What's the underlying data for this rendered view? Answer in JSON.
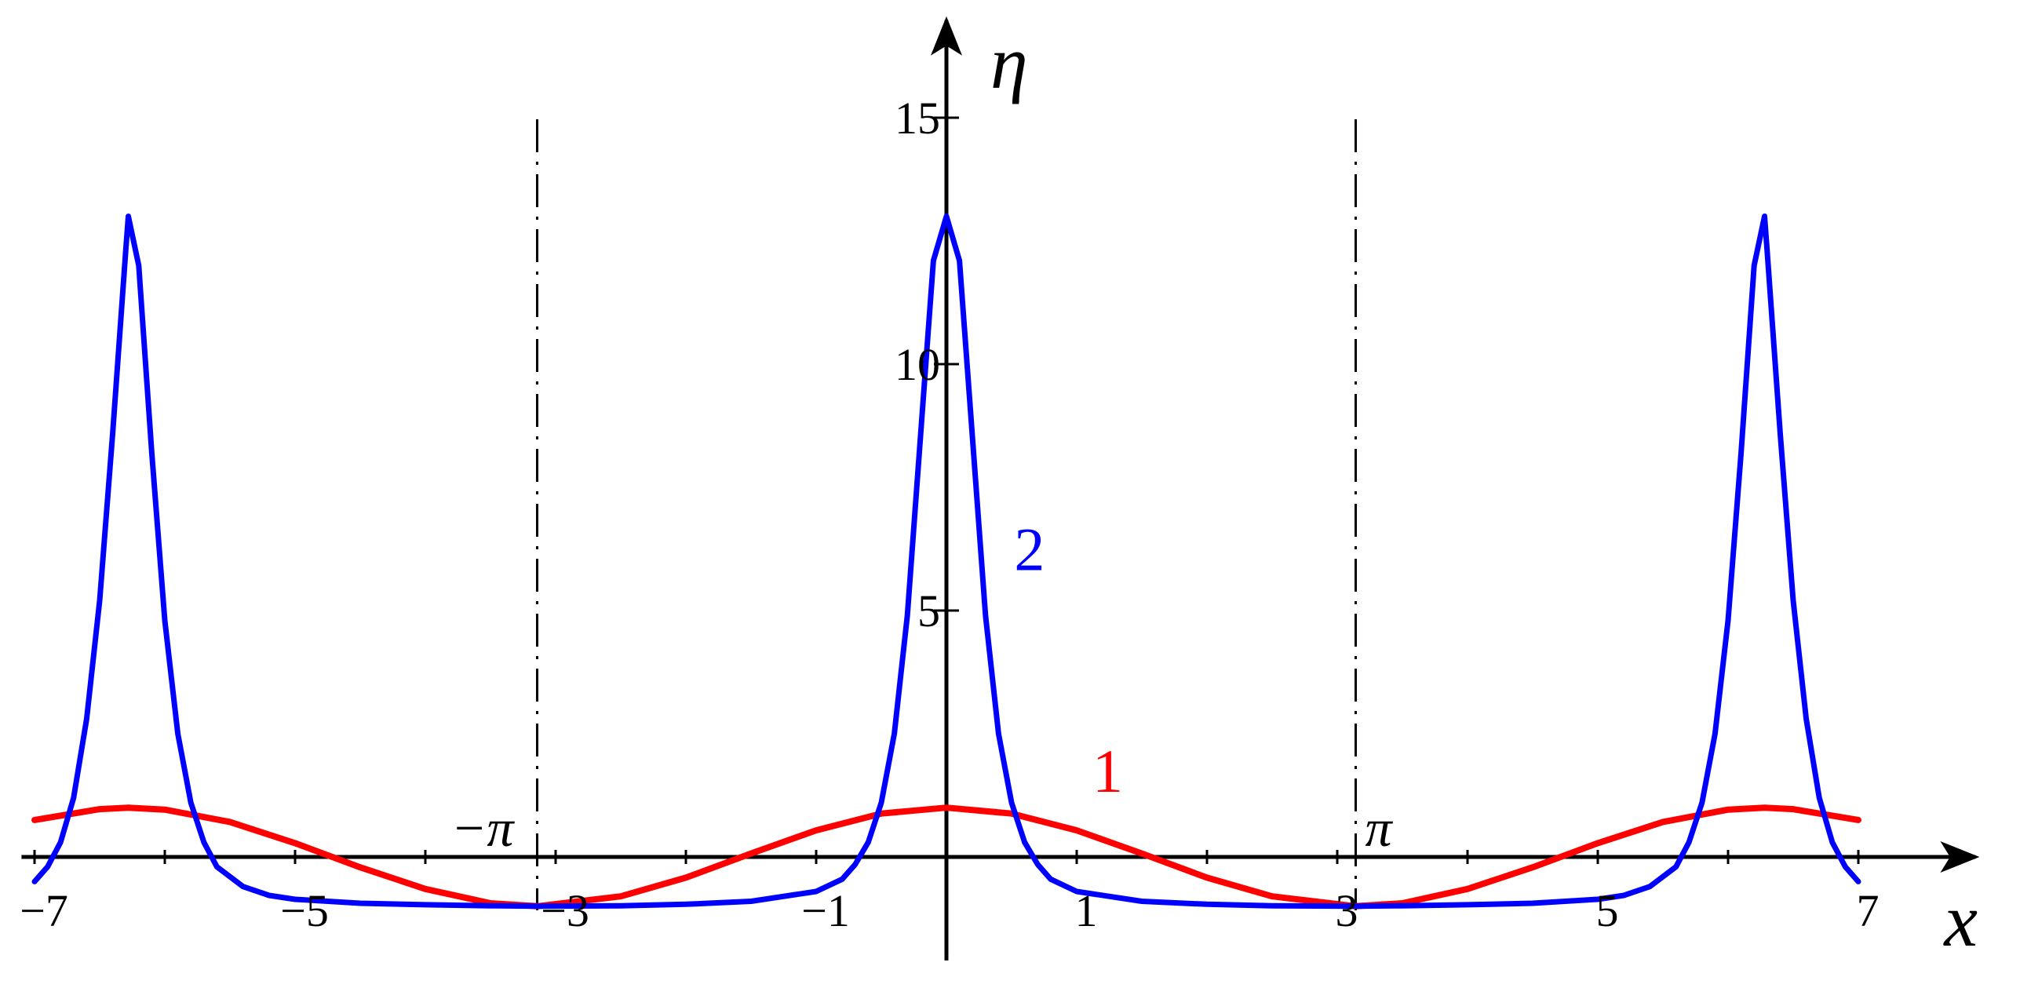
{
  "chart_data": {
    "type": "line",
    "title": "",
    "xlabel": "x",
    "ylabel": "η",
    "xlim": [
      -7.1,
      7.9
    ],
    "ylim": [
      -2.1,
      16.5
    ],
    "x_ticks": [
      {
        "value": -7,
        "label": "−7"
      },
      {
        "value": -5,
        "label": "−5"
      },
      {
        "value": -3,
        "label": "−3"
      },
      {
        "value": -1,
        "label": "−1"
      },
      {
        "value": 1,
        "label": "1"
      },
      {
        "value": 3,
        "label": "3"
      },
      {
        "value": 5,
        "label": "5"
      },
      {
        "value": 7,
        "label": "7"
      }
    ],
    "y_ticks": [
      {
        "value": 5,
        "label": "5"
      },
      {
        "value": 10,
        "label": "10"
      },
      {
        "value": 15,
        "label": "15"
      }
    ],
    "vlines": [
      {
        "x": -3.1416,
        "label": "−π"
      },
      {
        "x": 3.1416,
        "label": "π"
      }
    ],
    "series": [
      {
        "name": "1",
        "color": "#ff0000",
        "x": [
          -7.0,
          -6.5,
          -6.28,
          -6.0,
          -5.5,
          -5.0,
          -4.5,
          -4.0,
          -3.5,
          -3.14,
          -2.5,
          -2.0,
          -1.5,
          -1.0,
          -0.5,
          0.0,
          0.5,
          1.0,
          1.5,
          2.0,
          2.5,
          3.14,
          3.5,
          4.0,
          4.5,
          5.0,
          5.5,
          6.0,
          6.28,
          6.5,
          7.0
        ],
        "y": [
          0.75,
          0.97,
          1.0,
          0.96,
          0.71,
          0.28,
          -0.21,
          -0.65,
          -0.94,
          -1.0,
          -0.8,
          -0.42,
          0.07,
          0.54,
          0.88,
          1.0,
          0.88,
          0.54,
          0.07,
          -0.42,
          -0.8,
          -1.0,
          -0.94,
          -0.65,
          -0.21,
          0.28,
          0.71,
          0.96,
          1.0,
          0.97,
          0.75
        ]
      },
      {
        "name": "2",
        "color": "#0000ff",
        "x": [
          -7.0,
          -6.9,
          -6.8,
          -6.7,
          -6.6,
          -6.5,
          -6.4,
          -6.3,
          -6.28,
          -6.2,
          -6.1,
          -6.0,
          -5.9,
          -5.8,
          -5.7,
          -5.6,
          -5.4,
          -5.2,
          -5.0,
          -4.5,
          -4.0,
          -3.5,
          -3.14,
          -2.5,
          -2.0,
          -1.5,
          -1.0,
          -0.8,
          -0.7,
          -0.6,
          -0.5,
          -0.4,
          -0.3,
          -0.2,
          -0.1,
          0.0,
          0.1,
          0.2,
          0.3,
          0.4,
          0.5,
          0.6,
          0.7,
          0.8,
          1.0,
          1.5,
          2.0,
          2.5,
          3.14,
          3.5,
          4.0,
          4.5,
          5.0,
          5.2,
          5.4,
          5.6,
          5.7,
          5.8,
          5.9,
          6.0,
          6.1,
          6.2,
          6.28,
          6.3,
          6.4,
          6.5,
          6.6,
          6.7,
          6.8,
          6.9,
          7.0
        ],
        "y": [
          -0.5,
          -0.2,
          0.3,
          1.2,
          2.8,
          5.2,
          8.6,
          12.3,
          13.0,
          12.0,
          8.2,
          4.8,
          2.5,
          1.1,
          0.3,
          -0.2,
          -0.6,
          -0.78,
          -0.86,
          -0.94,
          -0.97,
          -0.99,
          -1.0,
          -0.99,
          -0.96,
          -0.9,
          -0.7,
          -0.45,
          -0.15,
          0.3,
          1.1,
          2.5,
          4.9,
          8.5,
          12.1,
          13.0,
          12.1,
          8.5,
          4.9,
          2.5,
          1.1,
          0.3,
          -0.15,
          -0.45,
          -0.7,
          -0.9,
          -0.96,
          -0.99,
          -1.0,
          -0.99,
          -0.97,
          -0.94,
          -0.86,
          -0.78,
          -0.6,
          -0.2,
          0.3,
          1.1,
          2.5,
          4.8,
          8.2,
          12.0,
          13.0,
          12.3,
          8.6,
          5.2,
          2.8,
          1.2,
          0.3,
          -0.2,
          -0.5
        ]
      }
    ],
    "curve_labels": [
      {
        "text": "1",
        "x": 1.0,
        "y": 1.0,
        "color": "#ff0000"
      },
      {
        "text": "2",
        "x": 0.4,
        "y": 5.5,
        "color": "#0000ff"
      }
    ]
  }
}
